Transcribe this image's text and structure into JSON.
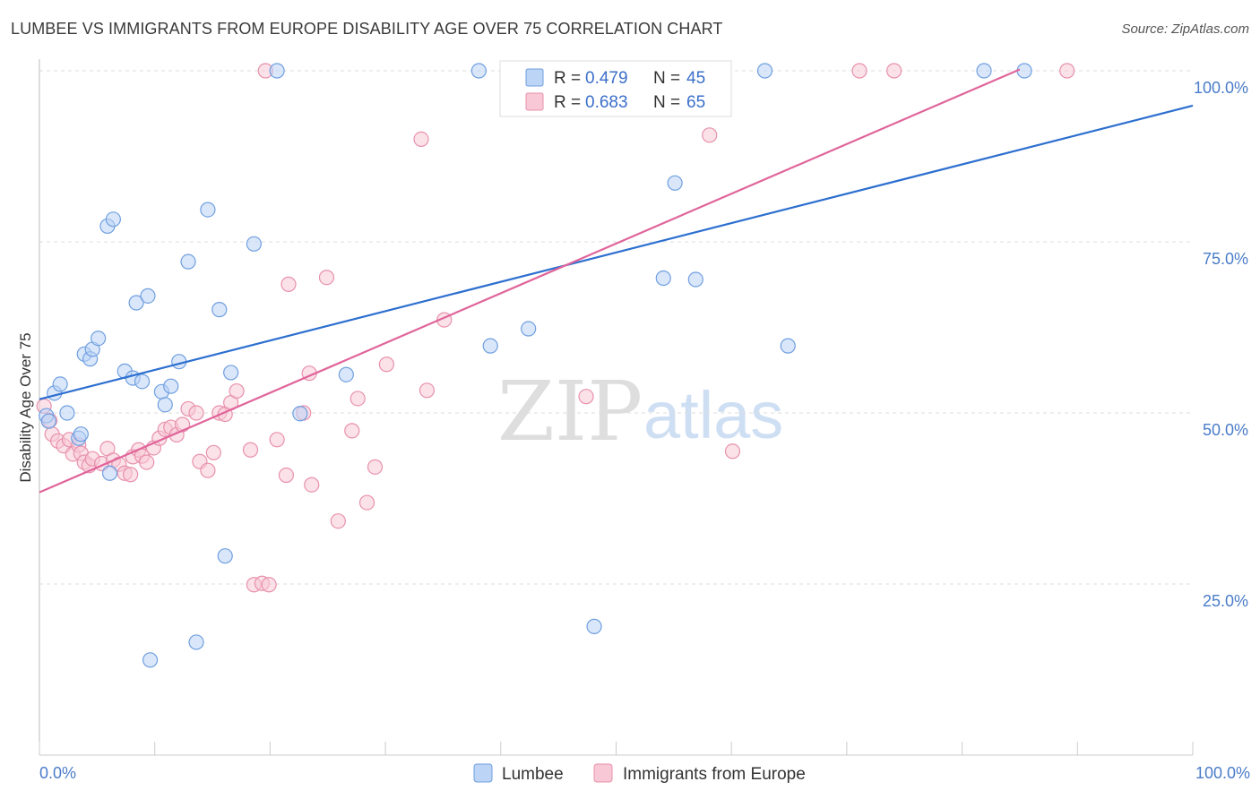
{
  "header": {
    "title": "LUMBEE VS IMMIGRANTS FROM EUROPE DISABILITY AGE OVER 75 CORRELATION CHART",
    "source": "Source: ZipAtlas.com"
  },
  "watermark": {
    "zip": "ZIP",
    "atlas": "atlas"
  },
  "legend": {
    "rows": [
      {
        "r_label": "R = ",
        "r_value": "0.479",
        "n_label": "N = ",
        "n_value": "45"
      },
      {
        "r_label": "R = ",
        "r_value": "0.683",
        "n_label": "N = ",
        "n_value": "65"
      }
    ]
  },
  "colors": {
    "lumbee_fill": "#bcd4f5",
    "lumbee_stroke": "#6f9fe0",
    "lumbee_line": "#2d6fcf",
    "europe_fill": "#f8c8d6",
    "europe_stroke": "#e891ac",
    "europe_line": "#e0659a",
    "grid": "#dddddd",
    "tick_label": "#4a7cc9"
  },
  "chart_data": {
    "type": "scatter",
    "title": "LUMBEE VS IMMIGRANTS FROM EUROPE DISABILITY AGE OVER 75 CORRELATION CHART",
    "xlabel": "",
    "ylabel": "Disability Age Over 75",
    "xlim": [
      0,
      100
    ],
    "ylim": [
      0,
      105
    ],
    "x_tick_labels": [
      "0.0%",
      "100.0%"
    ],
    "y_ticks": [
      25,
      50,
      75,
      100
    ],
    "y_tick_labels": [
      "25.0%",
      "50.0%",
      "75.0%",
      "100.0%"
    ],
    "grid": true,
    "legend_position": "top-center",
    "series": [
      {
        "name": "Lumbee",
        "r": 0.479,
        "n": 45,
        "trend": {
          "x": [
            0,
            100
          ],
          "y": [
            52.0,
            94.9
          ]
        },
        "points": [
          [
            0.6,
            49.6
          ],
          [
            0.8,
            48.8
          ],
          [
            1.3,
            52.9
          ],
          [
            1.8,
            54.2
          ],
          [
            2.4,
            50.0
          ],
          [
            3.4,
            46.3
          ],
          [
            3.6,
            46.9
          ],
          [
            3.9,
            58.6
          ],
          [
            4.4,
            57.9
          ],
          [
            4.6,
            59.3
          ],
          [
            5.1,
            60.9
          ],
          [
            5.9,
            77.3
          ],
          [
            6.4,
            78.3
          ],
          [
            6.1,
            41.2
          ],
          [
            7.4,
            56.1
          ],
          [
            8.1,
            55.1
          ],
          [
            8.4,
            66.1
          ],
          [
            8.9,
            54.6
          ],
          [
            9.4,
            67.1
          ],
          [
            9.6,
            13.9
          ],
          [
            10.6,
            53.1
          ],
          [
            10.9,
            51.2
          ],
          [
            11.4,
            53.9
          ],
          [
            12.1,
            57.5
          ],
          [
            12.9,
            72.1
          ],
          [
            13.6,
            16.5
          ],
          [
            14.6,
            79.7
          ],
          [
            15.6,
            65.1
          ],
          [
            16.1,
            29.1
          ],
          [
            16.6,
            55.9
          ],
          [
            18.6,
            74.7
          ],
          [
            20.6,
            100.0
          ],
          [
            22.6,
            49.9
          ],
          [
            26.6,
            55.6
          ],
          [
            38.1,
            100.0
          ],
          [
            39.1,
            59.8
          ],
          [
            42.4,
            62.3
          ],
          [
            48.1,
            18.8
          ],
          [
            54.1,
            69.7
          ],
          [
            55.1,
            83.6
          ],
          [
            56.9,
            69.5
          ],
          [
            62.9,
            100.0
          ],
          [
            64.9,
            59.8
          ],
          [
            81.9,
            100.0
          ],
          [
            85.4,
            100.0
          ]
        ]
      },
      {
        "name": "Immigrants from Europe",
        "r": 0.683,
        "n": 65,
        "trend": {
          "x": [
            0,
            85
          ],
          "y": [
            38.4,
            100.2
          ]
        },
        "points": [
          [
            0.4,
            51.0
          ],
          [
            0.9,
            48.9
          ],
          [
            1.1,
            46.9
          ],
          [
            1.6,
            45.9
          ],
          [
            2.1,
            45.2
          ],
          [
            2.6,
            46.1
          ],
          [
            2.9,
            44.0
          ],
          [
            3.4,
            45.3
          ],
          [
            3.6,
            44.1
          ],
          [
            3.9,
            42.8
          ],
          [
            4.3,
            42.3
          ],
          [
            4.6,
            43.3
          ],
          [
            5.4,
            42.6
          ],
          [
            5.9,
            44.8
          ],
          [
            6.4,
            43.1
          ],
          [
            6.9,
            42.5
          ],
          [
            7.4,
            41.2
          ],
          [
            7.9,
            41.0
          ],
          [
            8.1,
            43.6
          ],
          [
            8.6,
            44.6
          ],
          [
            8.9,
            43.7
          ],
          [
            9.3,
            42.8
          ],
          [
            9.9,
            44.9
          ],
          [
            10.4,
            46.3
          ],
          [
            10.9,
            47.6
          ],
          [
            11.4,
            47.9
          ],
          [
            11.9,
            46.8
          ],
          [
            12.4,
            48.3
          ],
          [
            12.9,
            50.6
          ],
          [
            13.6,
            50.0
          ],
          [
            13.9,
            42.9
          ],
          [
            14.6,
            41.6
          ],
          [
            15.1,
            44.2
          ],
          [
            15.6,
            50.0
          ],
          [
            16.1,
            49.8
          ],
          [
            16.6,
            51.5
          ],
          [
            17.1,
            53.2
          ],
          [
            18.3,
            44.6
          ],
          [
            18.6,
            24.9
          ],
          [
            19.3,
            25.1
          ],
          [
            19.6,
            100.0
          ],
          [
            19.9,
            24.9
          ],
          [
            20.6,
            46.1
          ],
          [
            21.6,
            68.8
          ],
          [
            21.4,
            40.9
          ],
          [
            22.9,
            50.0
          ],
          [
            23.4,
            55.8
          ],
          [
            23.6,
            39.5
          ],
          [
            24.9,
            69.8
          ],
          [
            25.9,
            34.2
          ],
          [
            27.1,
            47.4
          ],
          [
            27.6,
            52.1
          ],
          [
            28.4,
            36.9
          ],
          [
            29.1,
            42.1
          ],
          [
            30.1,
            57.1
          ],
          [
            33.1,
            90.0
          ],
          [
            33.6,
            53.3
          ],
          [
            35.1,
            63.6
          ],
          [
            47.1,
            100.0
          ],
          [
            47.4,
            52.4
          ],
          [
            58.1,
            90.6
          ],
          [
            60.1,
            44.4
          ],
          [
            71.1,
            100.0
          ],
          [
            74.1,
            100.0
          ],
          [
            89.1,
            100.0
          ]
        ]
      }
    ]
  }
}
